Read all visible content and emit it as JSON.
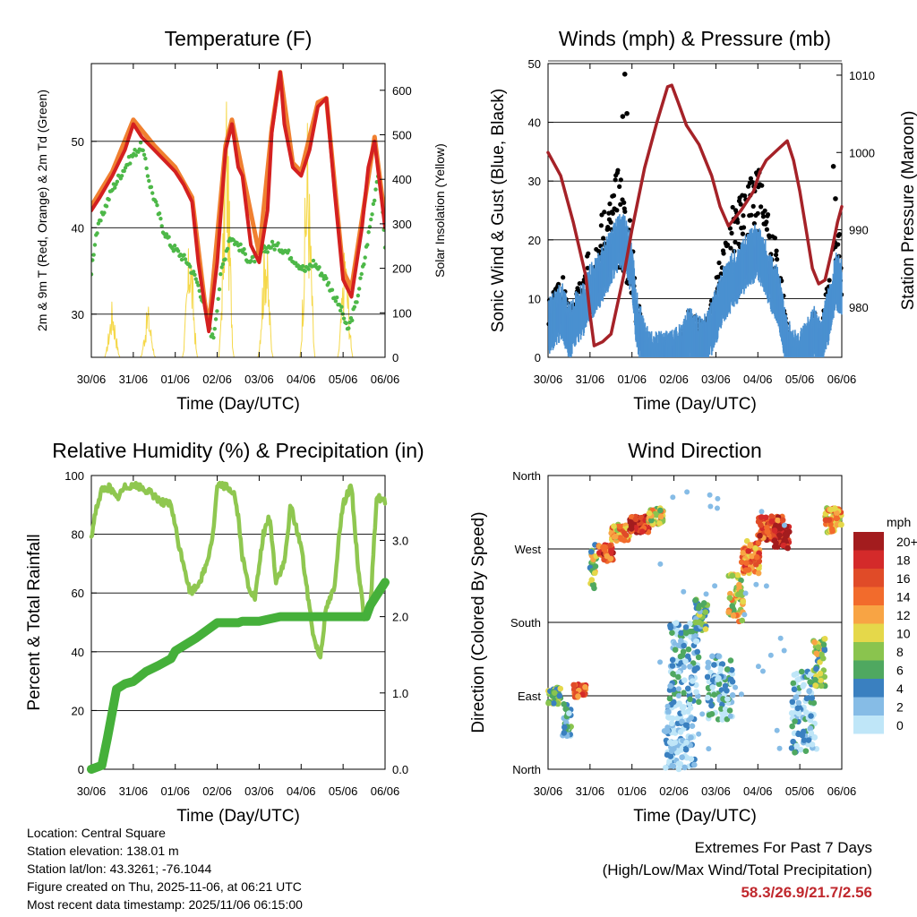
{
  "chart_data": [
    {
      "type": "line",
      "title": "Temperature (F)",
      "xlabel": "Time (Day/UTC)",
      "ylabel": "2m & 9m T (Red, Orange) & 2m Td (Green)",
      "y2label": "Solar Insolation (Yellow)",
      "x_ticks": [
        "30/06",
        "31/06",
        "01/06",
        "02/06",
        "03/06",
        "04/06",
        "05/06",
        "06/06"
      ],
      "ylim": [
        25,
        59
      ],
      "y_ticks": [
        30,
        40,
        50
      ],
      "y2lim": [
        0,
        660
      ],
      "y2_ticks": [
        0,
        100,
        200,
        300,
        400,
        500,
        600
      ],
      "series": [
        {
          "name": "2m T",
          "color": "#d42020",
          "x": [
            0,
            0.2,
            0.5,
            0.8,
            1.0,
            1.2,
            1.5,
            1.8,
            2.0,
            2.2,
            2.4,
            2.55,
            2.7,
            2.8,
            3.0,
            3.2,
            3.35,
            3.5,
            3.6,
            3.8,
            4.0,
            4.2,
            4.3,
            4.5,
            4.6,
            4.8,
            5.0,
            5.2,
            5.4,
            5.6,
            5.8,
            6.0,
            6.2,
            6.45,
            6.6,
            6.75,
            6.8,
            7.0
          ],
          "values": [
            42,
            43.5,
            46,
            49,
            52,
            50.5,
            49,
            47.5,
            46.5,
            45,
            43,
            36,
            31,
            28,
            36,
            49,
            52,
            47,
            46,
            38,
            36,
            42,
            51,
            58,
            52,
            47,
            46,
            49,
            54,
            55,
            44,
            34,
            32,
            40,
            47,
            50,
            48,
            40
          ]
        },
        {
          "name": "9m T",
          "color": "#f08030",
          "x": [
            0,
            0.5,
            1.0,
            1.5,
            2.0,
            2.4,
            2.7,
            2.8,
            3.2,
            3.35,
            3.6,
            4.0,
            4.3,
            4.5,
            4.8,
            5.0,
            5.4,
            5.6,
            6.0,
            6.2,
            6.45,
            6.75,
            7.0
          ],
          "values": [
            42.5,
            46.5,
            52.5,
            49.5,
            47,
            43.5,
            31.5,
            28.5,
            49.5,
            52.5,
            46.5,
            37,
            51.5,
            58,
            47.5,
            46.5,
            54.5,
            55,
            35,
            33,
            41,
            50.5,
            41
          ]
        },
        {
          "name": "2m Td",
          "color": "#4db848",
          "x": [
            0,
            0.1,
            0.3,
            0.5,
            0.8,
            1.0,
            1.2,
            1.4,
            1.7,
            1.9,
            2.1,
            2.3,
            2.5,
            2.7,
            2.8,
            2.9,
            3.1,
            3.3,
            3.5,
            3.8,
            4.0,
            4.3,
            4.6,
            4.9,
            5.1,
            5.3,
            5.6,
            5.8,
            6.0,
            6.1,
            6.3,
            6.5,
            6.7,
            6.85,
            7.0
          ],
          "values": [
            35,
            39,
            42,
            44.5,
            47,
            48.5,
            49.5,
            45,
            40,
            38,
            37,
            36,
            34,
            31,
            29,
            27,
            35,
            39,
            38,
            36,
            37,
            38,
            37.5,
            36,
            35,
            36,
            34,
            32,
            30,
            28,
            31,
            36,
            42,
            47,
            38
          ]
        }
      ],
      "solar": {
        "name": "Solar Insolation",
        "color": "#f5d84a",
        "peaks": [
          [
            0.5,
            140
          ],
          [
            1.35,
            130
          ],
          [
            2.35,
            320
          ],
          [
            3.22,
            650
          ],
          [
            4.15,
            340
          ],
          [
            5.15,
            580
          ],
          [
            6.05,
            290
          ]
        ]
      }
    },
    {
      "type": "scatter",
      "title": "Winds (mph) & Pressure (mb)",
      "xlabel": "Time (Day/UTC)",
      "ylabel": "Sonic Wind & Gust (Blue, Black)",
      "y2label": "Station Pressure (Maroon)",
      "x_ticks": [
        "30/06",
        "31/06",
        "01/06",
        "02/06",
        "03/06",
        "04/06",
        "05/06",
        "06/06"
      ],
      "ylim": [
        0,
        50
      ],
      "y_ticks": [
        0,
        10,
        20,
        30,
        40,
        50
      ],
      "y2lim": [
        973.5,
        1011.5
      ],
      "y2_ticks": [
        980,
        990,
        1000,
        1010
      ],
      "wind": {
        "name": "Sonic Wind",
        "color": "#4a90d0",
        "x": [
          0,
          0.2,
          0.35,
          0.5,
          0.7,
          0.9,
          1.0,
          1.2,
          1.5,
          1.7,
          1.85,
          2.0,
          2.1,
          2.3,
          2.5,
          2.8,
          3.0,
          3.2,
          3.35,
          3.5,
          3.7,
          3.85,
          4.0,
          4.2,
          4.4,
          4.6,
          4.8,
          5.0,
          5.15,
          5.3,
          5.5,
          5.7,
          5.85,
          6.0,
          6.2,
          6.35,
          6.5,
          6.6,
          6.75,
          6.85,
          7.0
        ],
        "values": [
          6,
          8,
          9,
          5,
          8,
          10,
          12,
          14,
          18,
          21,
          20,
          16,
          8,
          2,
          0.5,
          0.5,
          1,
          2,
          5,
          4,
          3,
          5,
          8,
          12,
          14,
          16,
          18,
          19,
          17,
          14,
          11,
          3,
          1,
          1,
          3,
          5,
          2,
          6,
          10,
          14,
          13
        ]
      },
      "gust": {
        "name": "Gust",
        "color": "#000000",
        "x": [
          0,
          0.2,
          0.35,
          0.5,
          0.7,
          0.9,
          1.0,
          1.2,
          1.4,
          1.55,
          1.7,
          1.85,
          2.0,
          2.1,
          2.3,
          2.5,
          2.8,
          3.0,
          3.2,
          3.35,
          3.5,
          3.7,
          3.85,
          4.0,
          4.2,
          4.4,
          4.6,
          4.8,
          5.0,
          5.15,
          5.3,
          5.5,
          5.7,
          5.85,
          6.0,
          6.2,
          6.35,
          6.5,
          6.6,
          6.75,
          6.85,
          7.0
        ],
        "values": [
          10,
          12,
          14,
          8,
          12,
          16,
          20,
          24,
          28,
          30,
          34,
          28,
          22,
          12,
          3,
          1,
          1,
          2,
          4,
          8,
          7,
          6,
          8,
          14,
          20,
          26,
          28,
          30,
          33,
          28,
          24,
          18,
          5,
          2,
          2,
          5,
          8,
          4,
          10,
          18,
          24,
          20
        ],
        "outliers": [
          [
            1.83,
            48.2
          ],
          [
            1.88,
            41.5
          ],
          [
            1.78,
            41.0
          ],
          [
            6.8,
            32.5
          ],
          [
            6.85,
            27
          ]
        ]
      },
      "pressure": {
        "name": "Station Pressure",
        "color": "#a52228",
        "x": [
          0,
          0.3,
          0.6,
          0.9,
          1.0,
          1.1,
          1.3,
          1.5,
          1.8,
          2.0,
          2.3,
          2.6,
          2.85,
          2.95,
          3.1,
          3.3,
          3.6,
          3.9,
          4.1,
          4.3,
          4.6,
          4.9,
          5.05,
          5.2,
          5.3,
          5.5,
          5.7,
          5.85,
          6.0,
          6.15,
          6.3,
          6.45,
          6.6,
          6.75,
          6.9,
          7.0
        ],
        "values": [
          1000,
          997,
          991,
          984,
          979,
          975,
          975.5,
          976.5,
          984,
          990,
          998,
          1004,
          1008.5,
          1008.7,
          1006.5,
          1003.5,
          1001,
          997,
          993,
          990.5,
          992.5,
          995,
          997.5,
          999,
          999.5,
          1000.5,
          1001.5,
          999,
          995,
          990,
          985,
          983,
          983.5,
          987,
          991,
          993
        ]
      }
    },
    {
      "type": "line",
      "title": "Relative Humidity (%) & Precipitation (in)",
      "xlabel": "Time (Day/UTC)",
      "ylabel": "Percent & Total Rainfall",
      "x_ticks": [
        "30/06",
        "31/06",
        "01/06",
        "02/06",
        "03/06",
        "04/06",
        "05/06",
        "06/06"
      ],
      "ylim": [
        0,
        100
      ],
      "y_ticks": [
        0,
        20,
        40,
        60,
        80,
        100
      ],
      "y2lim": [
        0,
        3.85
      ],
      "y2_ticks": [
        "0.0",
        "1.0",
        "2.0",
        "3.0"
      ],
      "series": [
        {
          "name": "Relative Humidity",
          "color": "#8fc750",
          "x": [
            0,
            0.1,
            0.25,
            0.45,
            0.6,
            0.8,
            1.0,
            1.15,
            1.3,
            1.5,
            1.7,
            1.9,
            2.1,
            2.2,
            2.35,
            2.5,
            2.65,
            2.75,
            2.9,
            3.0,
            3.1,
            3.25,
            3.4,
            3.5,
            3.6,
            3.75,
            3.9,
            4.1,
            4.25,
            4.4,
            4.6,
            4.75,
            4.85,
            5.0,
            5.15,
            5.3,
            5.45,
            5.6,
            5.8,
            5.9,
            6.0,
            6.1,
            6.2,
            6.35,
            6.5,
            6.65,
            6.8,
            7.0
          ],
          "values": [
            79,
            88,
            95,
            96,
            92,
            96,
            97,
            96,
            95,
            93,
            91,
            90,
            75,
            70,
            60,
            62,
            66,
            70,
            80,
            96,
            97,
            96,
            94,
            86,
            72,
            62,
            58,
            80,
            86,
            64,
            70,
            90,
            84,
            76,
            60,
            45,
            38,
            55,
            62,
            80,
            90,
            94,
            96,
            70,
            52,
            55,
            93,
            91
          ]
        },
        {
          "name": "Total Precipitation",
          "color": "#45b03a",
          "x": [
            0,
            0.25,
            0.38,
            0.5,
            0.6,
            0.8,
            1.0,
            1.3,
            1.6,
            1.9,
            2.0,
            2.5,
            3.0,
            3.5,
            3.6,
            4.0,
            4.5,
            5.0,
            5.5,
            6.0,
            6.55,
            6.65,
            6.8,
            7.0
          ],
          "values": [
            0,
            0.05,
            0.4,
            0.75,
            1.05,
            1.12,
            1.15,
            1.28,
            1.36,
            1.45,
            1.55,
            1.72,
            1.92,
            1.92,
            1.94,
            1.94,
            2.0,
            2.0,
            2.0,
            2.0,
            2.0,
            2.15,
            2.28,
            2.45
          ]
        }
      ]
    },
    {
      "type": "scatter",
      "title": "Wind Direction",
      "xlabel": "Time (Day/UTC)",
      "ylabel": "Direction (Colored By Speed)",
      "x_ticks": [
        "30/06",
        "31/06",
        "01/06",
        "02/06",
        "03/06",
        "04/06",
        "05/06",
        "06/06"
      ],
      "ylim": [
        0,
        360
      ],
      "y_ticks": [
        {
          "v": 0,
          "label": "North"
        },
        {
          "v": 90,
          "label": "East"
        },
        {
          "v": 180,
          "label": "South"
        },
        {
          "v": 270,
          "label": "West"
        },
        {
          "v": 360,
          "label": "North"
        }
      ],
      "legend": {
        "title": "mph",
        "levels": [
          {
            "label": "20+",
            "color": "#a31c1e"
          },
          {
            "label": "18",
            "color": "#d42a2a"
          },
          {
            "label": "16",
            "color": "#e04b28"
          },
          {
            "label": "14",
            "color": "#f26b2c"
          },
          {
            "label": "12",
            "color": "#f8a444"
          },
          {
            "label": "10",
            "color": "#e5d84a"
          },
          {
            "label": "8",
            "color": "#8ac44e"
          },
          {
            "label": "6",
            "color": "#4fa860"
          },
          {
            "label": "4",
            "color": "#3a80c0"
          },
          {
            "label": "2",
            "color": "#86bce6"
          },
          {
            "label": "0",
            "color": "#bfe6f8"
          }
        ]
      },
      "clusters": [
        {
          "x": [
            0,
            0.3
          ],
          "dir": [
            80,
            100
          ],
          "speed": 7
        },
        {
          "x": [
            0.35,
            0.55
          ],
          "dir": [
            40,
            80
          ],
          "speed": 4
        },
        {
          "x": [
            0.6,
            0.9
          ],
          "dir": [
            88,
            104
          ],
          "speed": 16
        },
        {
          "x": [
            1.0,
            1.15
          ],
          "dir": [
            220,
            280
          ],
          "speed": 8
        },
        {
          "x": [
            1.2,
            1.55
          ],
          "dir": [
            255,
            275
          ],
          "speed": 16
        },
        {
          "x": [
            1.5,
            1.95
          ],
          "dir": [
            280,
            300
          ],
          "speed": 12
        },
        {
          "x": [
            1.95,
            2.4
          ],
          "dir": [
            290,
            310
          ],
          "speed": 18
        },
        {
          "x": [
            2.4,
            2.75
          ],
          "dir": [
            300,
            320
          ],
          "speed": 10
        },
        {
          "x": [
            2.8,
            3.5
          ],
          "dir": [
            0,
            80
          ],
          "speed": 1
        },
        {
          "x": [
            2.9,
            3.6
          ],
          "dir": [
            80,
            180
          ],
          "speed": 3
        },
        {
          "x": [
            3.5,
            3.8
          ],
          "dir": [
            170,
            210
          ],
          "speed": 6
        },
        {
          "x": [
            3.8,
            4.4
          ],
          "dir": [
            60,
            140
          ],
          "speed": 3
        },
        {
          "x": [
            4.3,
            4.65
          ],
          "dir": [
            180,
            240
          ],
          "speed": 10
        },
        {
          "x": [
            4.6,
            5.05
          ],
          "dir": [
            240,
            280
          ],
          "speed": 14
        },
        {
          "x": [
            5.0,
            5.6
          ],
          "dir": [
            280,
            310
          ],
          "speed": 16
        },
        {
          "x": [
            5.4,
            5.75
          ],
          "dir": [
            270,
            300
          ],
          "speed": 20
        },
        {
          "x": [
            5.8,
            6.4
          ],
          "dir": [
            20,
            120
          ],
          "speed": 2
        },
        {
          "x": [
            6.3,
            6.6
          ],
          "dir": [
            100,
            160
          ],
          "speed": 8
        },
        {
          "x": [
            6.6,
            7.0
          ],
          "dir": [
            290,
            320
          ],
          "speed": 12
        }
      ]
    }
  ],
  "info": {
    "location": "Location: Central Square",
    "elevation": "Station elevation: 138.01 m",
    "latlon": "Station lat/lon: 43.3261; -76.1044",
    "created": "Figure created on Thu, 2025-11-06, at 06:21 UTC",
    "recent": "Most recent data timestamp: 2025/11/06 06:15:00"
  },
  "extremes": {
    "title": "Extremes For Past 7 Days",
    "subtitle": "(High/Low/Max Wind/Total Precipitation)",
    "values": "58.3/26.9/21.7/2.56"
  }
}
